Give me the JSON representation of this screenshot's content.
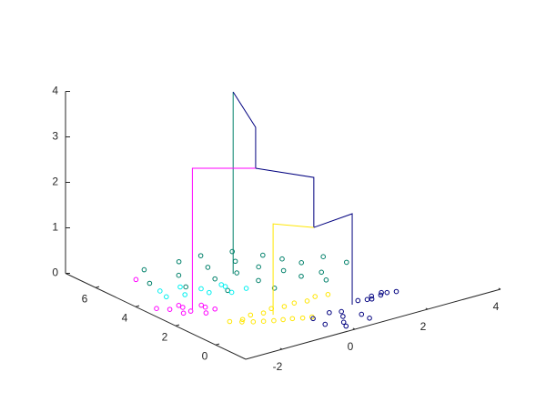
{
  "chart_data": {
    "type": "scatter3",
    "xlim": [
      -3,
      4
    ],
    "ylim": [
      -1.5,
      7.5
    ],
    "zlim": [
      0,
      4
    ],
    "xticks": [
      -2,
      0,
      2,
      4
    ],
    "yticks": [
      0,
      2,
      4,
      6
    ],
    "zticks": [
      0,
      1,
      2,
      3,
      4
    ],
    "marker": "open-circle",
    "series": [
      {
        "color": "#00806a",
        "x": [
          -1.5,
          -1.9,
          -0.6,
          -1.1,
          0.0,
          -1.4,
          -0.3,
          0.7,
          -0.6,
          0.4,
          0,
          -0.8,
          1.1,
          0.6,
          0.1,
          1.3,
          0.9,
          0.1,
          1.5,
          1.0,
          2.1,
          1.5,
          1.3,
          2.3
        ],
        "y": [
          6.3,
          5.3,
          6.2,
          5.3,
          6.2,
          4.4,
          5.3,
          5.9,
          4.4,
          5.2,
          4.4,
          3.4,
          5.1,
          4.4,
          3.5,
          4.5,
          3.7,
          2.7,
          3.9,
          3.0,
          3.9,
          2.9,
          2.3,
          3.1
        ],
        "z": [
          0,
          0,
          0,
          0,
          0,
          0,
          0,
          0,
          0,
          0,
          0,
          0,
          0,
          0,
          0,
          0,
          0,
          0,
          0,
          0,
          0,
          0,
          0,
          0
        ]
      },
      {
        "color": "#00f0f0",
        "x": [
          -2.0,
          -1.5,
          -1.7,
          -1.2,
          -1.2,
          -0.7,
          -0.8,
          -0.4,
          -2.1,
          -0.7
        ],
        "y": [
          4.6,
          4.5,
          3.9,
          4.0,
          3.6,
          3.7,
          3.2,
          3.2,
          4.1,
          3.9
        ],
        "z": [
          0,
          0,
          0,
          0,
          0,
          0,
          0,
          0,
          0,
          0
        ]
      },
      {
        "color": "#ff00ff",
        "x": [
          -2.5,
          -2.2,
          -2.2,
          -1.8,
          -1.7,
          -2.4,
          -1.8,
          -2.0,
          -2.2,
          -2.0,
          -2.7
        ],
        "y": [
          3.2,
          3.1,
          2.7,
          2.7,
          2.4,
          2.7,
          2.9,
          2.3,
          3.3,
          5.8,
          3.5
        ],
        "z": [
          0,
          0,
          0,
          0,
          0,
          0,
          0,
          0,
          0,
          0,
          0
        ]
      },
      {
        "color": "#ffe600",
        "x": [
          -1.9,
          -1.6,
          -1.3,
          -1.0,
          -0.7,
          -0.4,
          -0.1,
          0.2,
          0.5,
          0.8,
          -1.7,
          -1.5,
          -1.3,
          -1.1,
          -0.9,
          -0.7,
          -0.5,
          -0.3
        ],
        "y": [
          1.3,
          1.2,
          1.35,
          1.25,
          1.4,
          1.3,
          1.35,
          1.25,
          1.4,
          1.3,
          1.05,
          0.85,
          0.7,
          0.55,
          0.45,
          0.35,
          0.2,
          0.1
        ],
        "z": [
          0,
          0,
          0,
          0,
          0,
          0,
          0,
          0,
          0,
          0,
          0,
          0,
          0,
          0,
          0,
          0,
          0,
          0
        ]
      },
      {
        "color": "#00007f",
        "x": [
          -0.34,
          0.16,
          -0.34,
          0.26,
          0.06,
          0.66,
          0.66,
          -0.04,
          0.41,
          1.1,
          1.3,
          1.5,
          1.7,
          1.9,
          2.1,
          1.4,
          1.8
        ],
        "y": [
          -0.03,
          0.07,
          -0.63,
          -0.43,
          -0.83,
          -0.63,
          -1.03,
          -1.13,
          -0.08,
          0.35,
          0.25,
          0.4,
          0.3,
          0.35,
          0.25,
          0.2,
          0.45
        ],
        "z": [
          0,
          0,
          0,
          0,
          0,
          0,
          0,
          0,
          0,
          0,
          0,
          0,
          0,
          0,
          0,
          0,
          0
        ]
      }
    ],
    "lines": [
      {
        "color": "#00806a",
        "x": [
          -0.1,
          -0.1
        ],
        "y": [
          4.4,
          4.4
        ],
        "z": [
          0,
          4
        ]
      },
      {
        "color": "#00007f",
        "x": [
          -0.1,
          -1.0,
          -1.0
        ],
        "y": [
          4.4,
          1.64,
          1.64
        ],
        "z": [
          4,
          4,
          3.1
        ]
      },
      {
        "color": "#ff00ff",
        "x": [
          -2.1,
          -2.1,
          -1.0
        ],
        "y": [
          2.8,
          2.8,
          1.64
        ],
        "z": [
          0,
          3.1,
          3.1
        ]
      },
      {
        "color": "#00007f",
        "x": [
          -1.0,
          -0.32,
          -0.32
        ],
        "y": [
          1.64,
          -0.03,
          -0.03
        ],
        "z": [
          3.1,
          3.1,
          2.0
        ]
      },
      {
        "color": "#ffe600",
        "x": [
          -0.9,
          -0.9,
          -0.32
        ],
        "y": [
          0.95,
          0.95,
          -0.03
        ],
        "z": [
          0,
          2.0,
          2.0
        ]
      },
      {
        "color": "#00007f",
        "x": [
          -0.32,
          0.85,
          0.85
        ],
        "y": [
          -0.03,
          0.18,
          0.18
        ],
        "z": [
          2.0,
          2.0,
          0
        ]
      }
    ]
  }
}
